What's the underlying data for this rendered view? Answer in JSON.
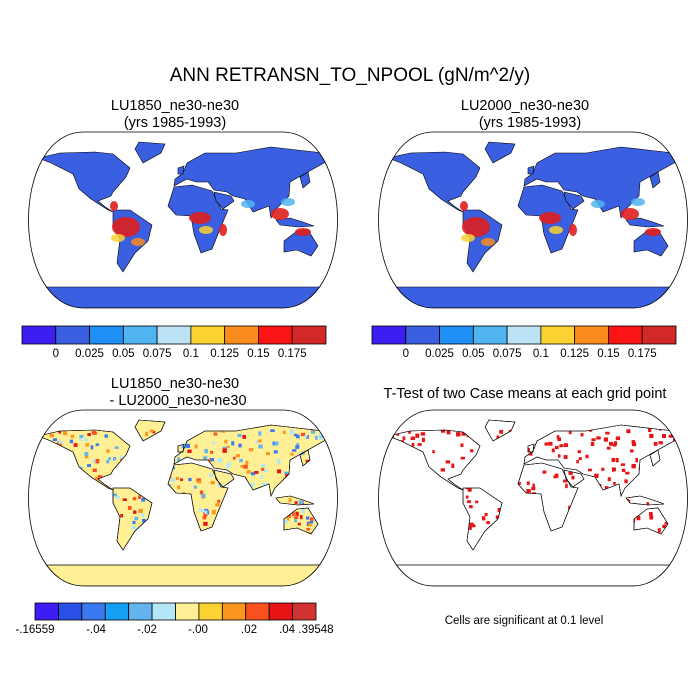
{
  "title": "ANN RETRANSN_TO_NPOOL (gN/m^2/y)",
  "panels": [
    {
      "title": "LU1850_ne30-ne30",
      "subtitle": "(yrs 1985-1993)"
    },
    {
      "title": "LU2000_ne30-ne30",
      "subtitle": "(yrs 1985-1993)"
    },
    {
      "title": "LU1850_ne30-ne30",
      "subtitle": "- LU2000_ne30-ne30"
    },
    {
      "title": "T-Test of two Case means at each grid point"
    }
  ],
  "colorbars": [
    {
      "colors": [
        "#3c1ef5",
        "#3a5fe0",
        "#1e90f5",
        "#50b4f0",
        "#bce2f5",
        "#fad232",
        "#fa8c1e",
        "#fa1414",
        "#d22828"
      ],
      "labels": [
        "0",
        "0.025",
        "0.05",
        "0.075",
        "0.1",
        "0.125",
        "0.15",
        "0.175"
      ]
    },
    {
      "colors": [
        "#3c1ef5",
        "#3a5fe0",
        "#1e90f5",
        "#50b4f0",
        "#bce2f5",
        "#fad232",
        "#fa8c1e",
        "#fa1414",
        "#d22828"
      ],
      "labels": [
        "0",
        "0.025",
        "0.05",
        "0.075",
        "0.1",
        "0.125",
        "0.15",
        "0.175"
      ]
    },
    {
      "colors": [
        "#3c1ef5",
        "#2850e6",
        "#3c78f0",
        "#14a0f5",
        "#64b4f0",
        "#b4e6fa",
        "#fff096",
        "#fad232",
        "#fa961e",
        "#fa501e",
        "#e61414",
        "#d23232"
      ],
      "labels": [
        "-.16559",
        "-.04",
        "-.02",
        "-.00",
        ".02",
        ".04",
        ".39548"
      ]
    }
  ],
  "note": "Cells are significant at 0.1 level"
}
